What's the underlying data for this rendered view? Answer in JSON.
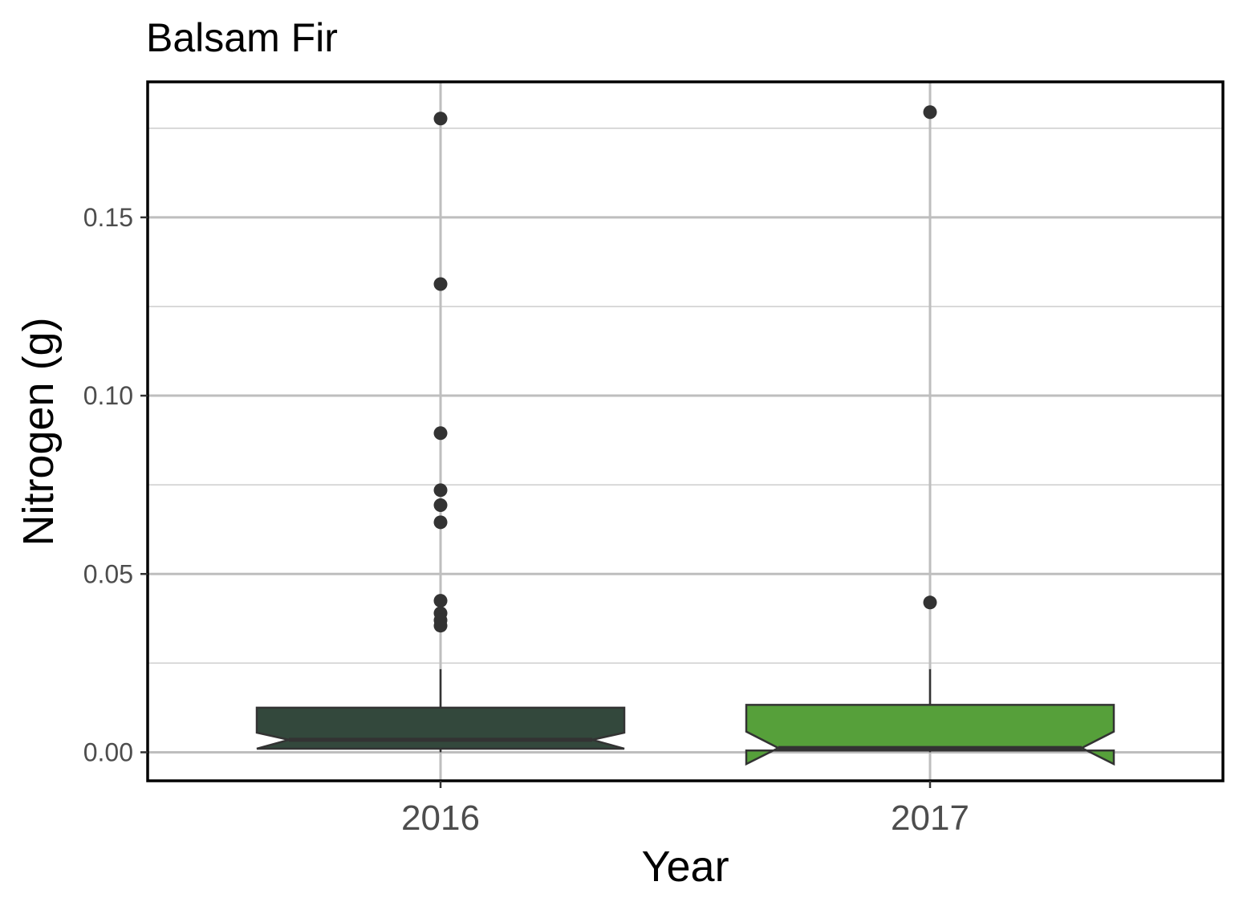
{
  "chart_data": {
    "type": "boxplot",
    "title": "Balsam Fir",
    "xlabel": "Year",
    "ylabel": "Nitrogen (g)",
    "categories": [
      "2016",
      "2017"
    ],
    "ylim": [
      -0.008,
      0.188
    ],
    "yticks": [
      0.0,
      0.05,
      0.1,
      0.15
    ],
    "ytick_labels": [
      "0.00",
      "0.05",
      "0.10",
      "0.15"
    ],
    "y_minor_grid": [
      0.025,
      0.075,
      0.125,
      0.175
    ],
    "notched": true,
    "grid": true,
    "legend": "none",
    "boxes": [
      {
        "category": "2016",
        "fill": "#33483c",
        "q1": 0.001,
        "median": 0.0035,
        "q3": 0.0125,
        "notch_low": 0.001,
        "notch_high": 0.0055,
        "whisker_low": 0.0,
        "whisker_high": 0.0233,
        "outliers": [
          0.1777,
          0.1313,
          0.0895,
          0.0735,
          0.0693,
          0.0645,
          0.0425,
          0.039,
          0.037,
          0.0355
        ]
      },
      {
        "category": "2017",
        "fill": "#56a03a",
        "q1": 0.0005,
        "median": 0.0012,
        "q3": 0.0133,
        "notch_low": -0.0033,
        "notch_high": 0.0058,
        "whisker_low": 0.0,
        "whisker_high": 0.0233,
        "outliers": [
          0.1795,
          0.042
        ]
      }
    ]
  }
}
